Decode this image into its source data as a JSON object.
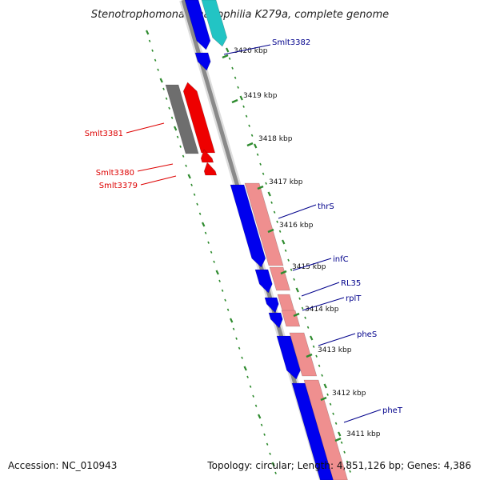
{
  "title": "Stenotrophomonas maltophilia K279a, complete genome",
  "footer": {
    "accession": "Accession: NC_010943",
    "summary": "Topology: circular; Length: 4,851,126 bp; Genes: 4,386"
  },
  "colors": {
    "backbone": "#8a8a8a",
    "tick": "#2e8b2e",
    "blue_gene": "#0000ee",
    "cyan_gene": "#22c4c4",
    "salmon_gene": "#ef8f8f",
    "red_gene": "#ee0000",
    "gray_gene": "#6e6e6e",
    "forward_label": "#00008b",
    "reverse_label": "#dd0000"
  },
  "scale_ticks": [
    {
      "label": "3420 kbp"
    },
    {
      "label": "3419 kbp"
    },
    {
      "label": "3418 kbp"
    },
    {
      "label": "3417 kbp"
    },
    {
      "label": "3416 kbp"
    },
    {
      "label": "3415 kbp"
    },
    {
      "label": "3414 kbp"
    },
    {
      "label": "3413 kbp"
    },
    {
      "label": "3412 kbp"
    },
    {
      "label": "3411 kbp"
    }
  ],
  "genes": [
    {
      "label": "Smlt3382",
      "strand": "forward"
    },
    {
      "label": "Smlt3381",
      "strand": "reverse"
    },
    {
      "label": "Smlt3380",
      "strand": "reverse"
    },
    {
      "label": "Smlt3379",
      "strand": "reverse"
    },
    {
      "label": "thrS",
      "strand": "forward"
    },
    {
      "label": "infC",
      "strand": "forward"
    },
    {
      "label": "RL35",
      "strand": "forward"
    },
    {
      "label": "rplT",
      "strand": "forward"
    },
    {
      "label": "pheS",
      "strand": "forward"
    },
    {
      "label": "pheT",
      "strand": "forward"
    }
  ]
}
